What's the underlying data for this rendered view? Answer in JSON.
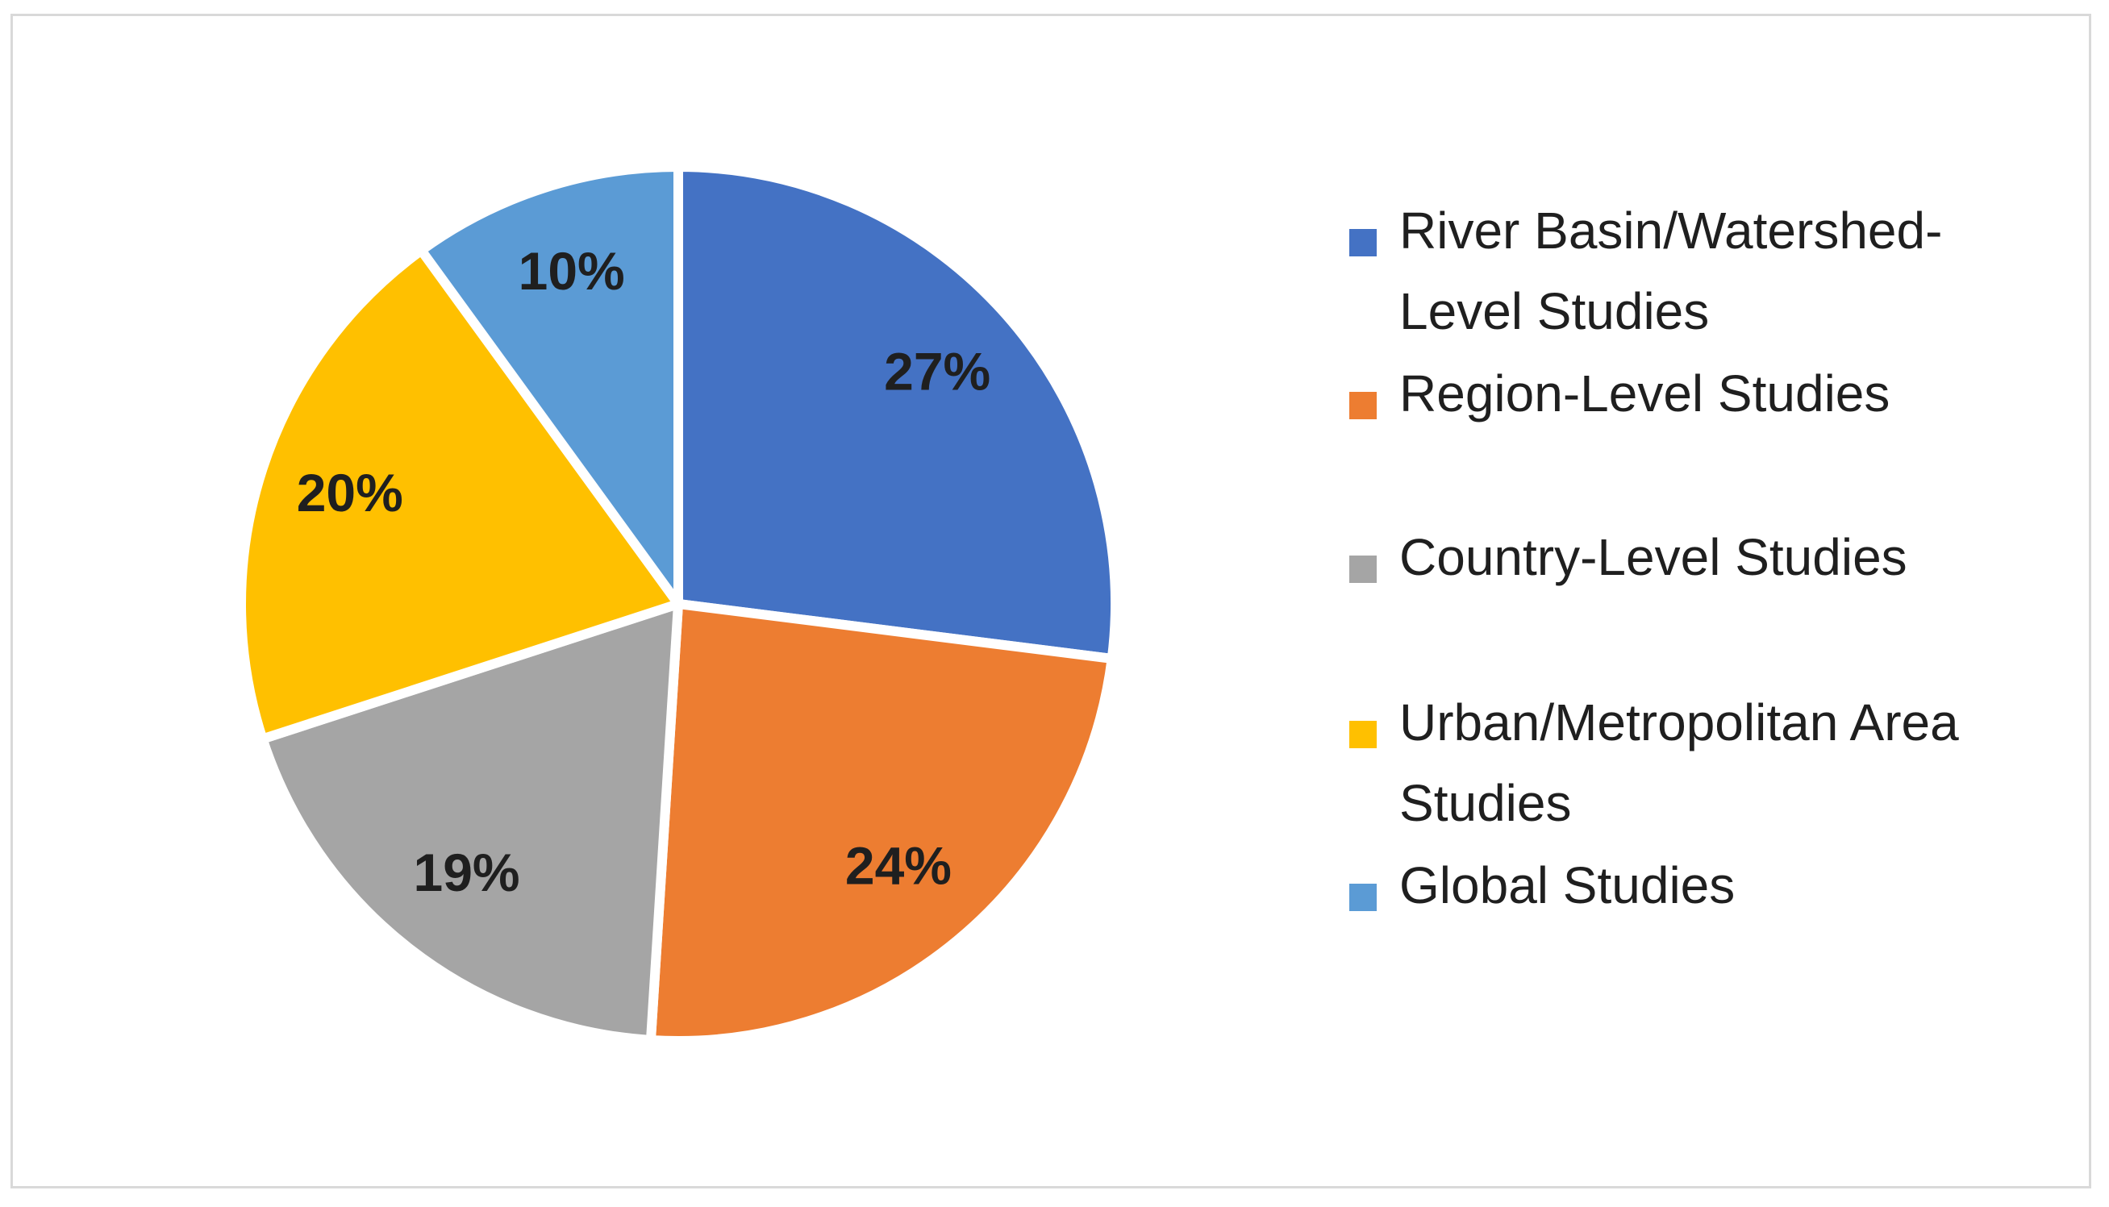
{
  "chart_data": {
    "type": "pie",
    "categories": [
      "River Basin/Watershed-Level Studies",
      "Region-Level Studies",
      "Country-Level Studies",
      "Urban/Metropolitan Area Studies",
      "Global Studies"
    ],
    "values": [
      27,
      24,
      19,
      20,
      10
    ],
    "value_labels": [
      "27%",
      "24%",
      "19%",
      "20%",
      "10%"
    ],
    "colors": [
      "#4472c4",
      "#ed7d31",
      "#a5a5a5",
      "#ffc000",
      "#5b9bd5"
    ],
    "legend": "right"
  }
}
